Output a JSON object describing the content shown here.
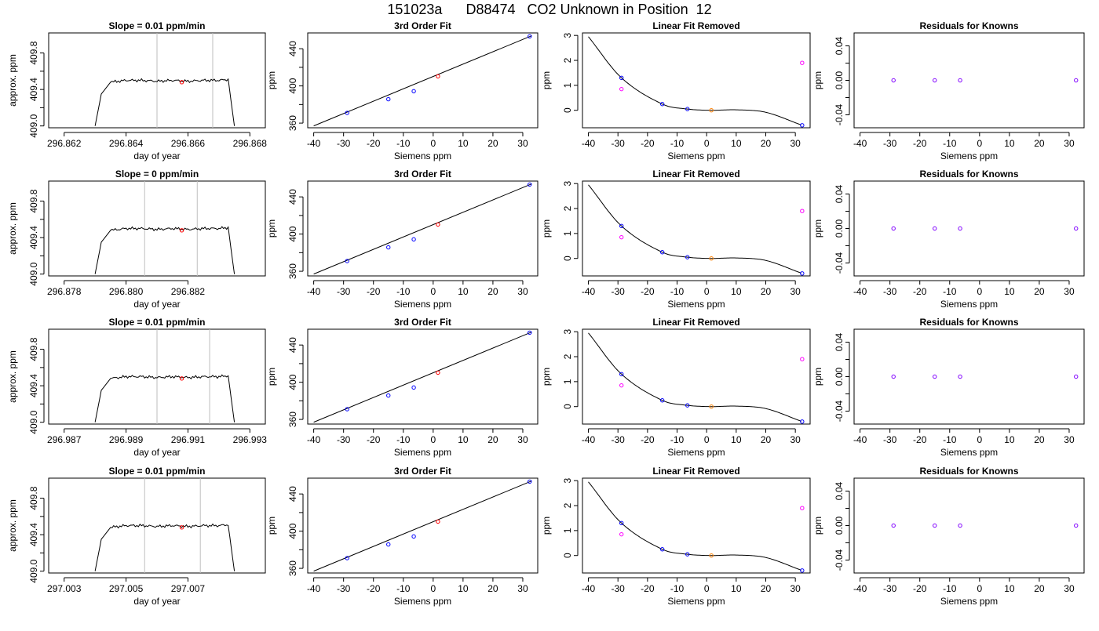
{
  "title": "151023a      D88474   CO2 Unknown in Position  12",
  "colors": {
    "line": "#000000",
    "known": "#0000ff",
    "unknown": "#ff0000",
    "residual": "#ff00ff",
    "unknown_removed": "#ff8000",
    "vline": "#bebebe"
  },
  "rows": [
    {
      "slope_title": "Slope =  0.01  ppm/min",
      "time_xticks": [
        "296.862",
        "296.864",
        "296.866",
        "296.868"
      ],
      "vlines": [
        296.865,
        296.8668
      ]
    },
    {
      "slope_title": "Slope =  0  ppm/min",
      "time_xticks": [
        "296.878",
        "296.880",
        "296.882"
      ],
      "vlines": [
        296.8806,
        296.8823
      ]
    },
    {
      "slope_title": "Slope =  0.01  ppm/min",
      "time_xticks": [
        "296.987",
        "296.989",
        "296.991",
        "296.993"
      ],
      "vlines": [
        296.99,
        296.9917
      ]
    },
    {
      "slope_title": "Slope =  0.01  ppm/min",
      "time_xticks": [
        "297.003",
        "297.005",
        "297.007"
      ],
      "vlines": [
        297.0056,
        297.0074
      ]
    }
  ],
  "labels": {
    "time_xlabel": "day of year",
    "time_ylabel": "approx. ppm",
    "fit_title": "3rd Order Fit",
    "fit_ylabel": "ppm",
    "removed_title": "Linear Fit Removed",
    "removed_ylabel": "ppm",
    "resid_title": "Residuals for Knowns",
    "resid_ylabel": "ppm",
    "siemens_xlabel": "Siemens ppm"
  },
  "chart_data": [
    {
      "type": "line",
      "panel": "time_series",
      "x": [
        296.863,
        296.8632,
        296.8635,
        296.864,
        296.8645,
        296.865,
        296.8655,
        296.866,
        296.8665,
        296.867,
        296.8673,
        296.8675
      ],
      "y": [
        409.0,
        409.35,
        409.48,
        409.5,
        409.5,
        409.49,
        409.5,
        409.49,
        409.5,
        409.5,
        409.51,
        409.0
      ],
      "unknown_point": {
        "x": 296.8658,
        "y": 409.48
      },
      "xlim": [
        296.8615,
        296.8685
      ],
      "ylim": [
        408.98,
        410.02
      ],
      "yticks": [
        "409.0",
        "409.4",
        "409.8"
      ]
    },
    {
      "type": "scatter",
      "panel": "third_order_fit",
      "known_x": [
        -28.8,
        -15,
        -6.5,
        32.3
      ],
      "known_y": [
        371,
        385.7,
        394.3,
        453.3
      ],
      "unknown_x": [
        1.6
      ],
      "unknown_y": [
        410.3
      ],
      "fit_line": [
        [
          -40,
          357
        ],
        [
          33,
          454
        ]
      ],
      "xlim": [
        -42,
        35
      ],
      "ylim": [
        355,
        457
      ],
      "xticks": [
        "-40",
        "-30",
        "-20",
        "-10",
        "0",
        "10",
        "20",
        "30"
      ],
      "yticks": [
        "360",
        "400",
        "440"
      ]
    },
    {
      "type": "scatter",
      "panel": "linear_fit_removed",
      "known_x": [
        -28.8,
        -15,
        -6.5,
        32.3
      ],
      "known_y": [
        1.3,
        0.25,
        0.05,
        -0.6
      ],
      "residual_x": [
        -28.8,
        32.3
      ],
      "residual_y": [
        0.85,
        1.9
      ],
      "unknown_x": [
        1.6
      ],
      "unknown_y": [
        0.0
      ],
      "curve_coeffs": [
        0.0,
        -0.02,
        0.002,
        -5e-05
      ],
      "xlim": [
        -42,
        35
      ],
      "ylim": [
        -0.7,
        3.1
      ],
      "xticks": [
        "-40",
        "-30",
        "-20",
        "-10",
        "0",
        "10",
        "20",
        "30"
      ],
      "yticks": [
        "0",
        "1",
        "2",
        "3"
      ]
    },
    {
      "type": "scatter",
      "panel": "residuals_for_knowns",
      "x": [
        -28.8,
        -15,
        -6.5,
        32.3
      ],
      "y": [
        0,
        0,
        0,
        0
      ],
      "xlim": [
        -42,
        35
      ],
      "ylim": [
        -0.055,
        0.055
      ],
      "xticks": [
        "-40",
        "-30",
        "-20",
        "-10",
        "0",
        "10",
        "20",
        "30"
      ],
      "yticks": [
        "-0.04",
        "0.00",
        "0.04"
      ]
    }
  ]
}
